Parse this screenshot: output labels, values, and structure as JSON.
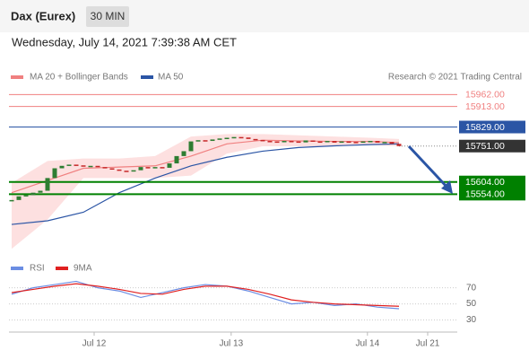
{
  "header": {
    "title": "Dax (Eurex)",
    "interval": "30 MIN",
    "date": "Wednesday, July 14, 2021 7:39:38 AM CET",
    "credit": "Research © 2021 Trading Central"
  },
  "chart_data": {
    "type": "candlestick",
    "up_color": "#2e7d32",
    "down_color": "#c62828",
    "close": [
      15530,
      15545,
      15550,
      15560,
      15568,
      15620,
      15660,
      15670,
      15675,
      15672,
      15668,
      15670,
      15665,
      15660,
      15655,
      15650,
      15648,
      15652,
      15665,
      15660,
      15665,
      15662,
      15680,
      15710,
      15730,
      15770,
      15775,
      15772,
      15778,
      15782,
      15785,
      15788,
      15786,
      15780,
      15776,
      15772,
      15770,
      15768,
      15772,
      15770,
      15766,
      15774,
      15770,
      15768,
      15772,
      15765,
      15770,
      15768,
      15766,
      15770,
      15772,
      15765,
      15768,
      15760,
      15751
    ],
    "xlim": [
      -0.375,
      62.125
    ],
    "xticks": [
      {
        "value": 11.5,
        "label": "Jul 12"
      },
      {
        "value": 30.6,
        "label": "Jul 13"
      },
      {
        "value": 49.6,
        "label": "Jul 14"
      },
      {
        "value": 58,
        "label": "Jul 21"
      }
    ],
    "ylim": [
      15320,
      16000
    ],
    "series": [
      {
        "name": "MA 20 + Bollinger Bands",
        "color": "#f08080",
        "x": [
          0,
          5,
          10,
          15,
          20,
          25,
          30,
          35,
          40,
          45,
          50,
          54
        ],
        "values": [
          15560,
          15610,
          15660,
          15665,
          15670,
          15710,
          15760,
          15775,
          15772,
          15770,
          15770,
          15765
        ]
      },
      {
        "name": "MA 50",
        "color": "#2b55a5",
        "x": [
          0,
          5,
          10,
          15,
          20,
          25,
          30,
          35,
          40,
          45,
          50,
          54
        ],
        "values": [
          15430,
          15445,
          15480,
          15560,
          15620,
          15670,
          15705,
          15730,
          15745,
          15752,
          15757,
          15760
        ]
      }
    ],
    "bollinger": {
      "color": "#fde0e0",
      "x": [
        0,
        5,
        10,
        15,
        20,
        25,
        30,
        35,
        40,
        45,
        50,
        54
      ],
      "upper": [
        15600,
        15690,
        15700,
        15700,
        15710,
        15790,
        15800,
        15800,
        15795,
        15790,
        15785,
        15780
      ],
      "lower": [
        15330,
        15450,
        15620,
        15620,
        15620,
        15630,
        15720,
        15750,
        15750,
        15750,
        15755,
        15750
      ]
    },
    "levels": [
      {
        "value": 15962,
        "label": "15962.00",
        "color": "#f08080",
        "box": false,
        "width": 1,
        "dotted": false
      },
      {
        "value": 15913,
        "label": "15913.00",
        "color": "#f08080",
        "box": false,
        "width": 1,
        "dotted": false
      },
      {
        "value": 15829,
        "label": "15829.00",
        "color": "#2b55a5",
        "box": true,
        "width": 1,
        "dotted": false
      },
      {
        "value": 15751,
        "label": "15751.00",
        "color": "#333333",
        "box": true,
        "width": 1,
        "dotted": true
      },
      {
        "value": 15604,
        "label": "15604.00",
        "color": "#008000",
        "box": true,
        "width": 2,
        "dotted": false
      },
      {
        "value": 15554,
        "label": "15554.00",
        "color": "#008000",
        "box": true,
        "width": 2,
        "dotted": false
      }
    ],
    "rsi": {
      "ylim": [
        15,
        93
      ],
      "yticks": [
        70,
        50,
        30
      ],
      "series": [
        {
          "name": "RSI",
          "color": "#6b8de3",
          "x": [
            0,
            3,
            6,
            9,
            12,
            15,
            18,
            21,
            24,
            27,
            30,
            33,
            36,
            39,
            42,
            45,
            48,
            51,
            54
          ],
          "values": [
            62,
            70,
            74,
            78,
            70,
            66,
            58,
            64,
            70,
            74,
            72,
            66,
            58,
            50,
            52,
            48,
            50,
            46,
            44
          ]
        },
        {
          "name": "9MA",
          "color": "#e02020",
          "x": [
            0,
            3,
            6,
            9,
            12,
            15,
            18,
            21,
            24,
            27,
            30,
            33,
            36,
            39,
            42,
            45,
            48,
            51,
            54
          ],
          "values": [
            64,
            68,
            72,
            75,
            72,
            68,
            63,
            62,
            68,
            72,
            72,
            68,
            62,
            55,
            52,
            50,
            49,
            48,
            47
          ]
        }
      ]
    }
  }
}
